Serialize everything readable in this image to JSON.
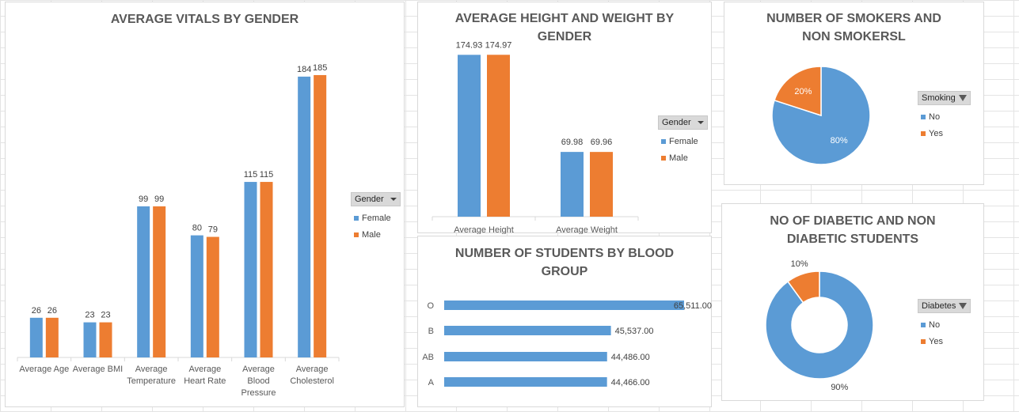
{
  "colors": {
    "female": "#5b9bd5",
    "male": "#ed7d31",
    "no": "#5b9bd5",
    "yes": "#ed7d31"
  },
  "chart_data": [
    {
      "id": "vitals",
      "type": "bar",
      "title": "AVERAGE VITALS BY GENDER",
      "categories": [
        "Average  Age",
        "Average  BMI",
        "Average Temperature",
        "Average Heart Rate",
        "Average Blood Pressure",
        "Average Cholesterol"
      ],
      "category_lines": [
        [
          "Average  Age"
        ],
        [
          "Average  BMI"
        ],
        [
          "Average",
          "Temperature"
        ],
        [
          "Average",
          "Heart Rate"
        ],
        [
          "Average",
          "Blood",
          "Pressure"
        ],
        [
          "Average",
          "Cholesterol"
        ]
      ],
      "series": [
        {
          "name": "Female",
          "values": [
            26,
            23,
            99,
            80,
            115,
            184
          ]
        },
        {
          "name": "Male",
          "values": [
            26,
            23,
            99,
            79,
            115,
            185
          ]
        }
      ],
      "ylim": [
        0,
        200
      ],
      "legend_title": "Gender",
      "legend": "right"
    },
    {
      "id": "heightweight",
      "type": "bar",
      "title": "AVERAGE HEIGHT AND WEIGHT BY GENDER",
      "title_lines": [
        "AVERAGE HEIGHT AND WEIGHT BY",
        "GENDER"
      ],
      "categories": [
        "Average  Height",
        "Average  Weight"
      ],
      "series": [
        {
          "name": "Female",
          "values": [
            174.93,
            69.98
          ]
        },
        {
          "name": "Male",
          "values": [
            174.97,
            69.96
          ]
        }
      ],
      "ylim": [
        0,
        200
      ],
      "legend_title": "Gender",
      "legend": "right"
    },
    {
      "id": "bloodgroup",
      "type": "bar",
      "orientation": "horizontal",
      "title": "NUMBER OF STUDENTS BY BLOOD GROUP",
      "title_lines": [
        "NUMBER OF STUDENTS BY BLOOD",
        "GROUP"
      ],
      "categories": [
        "O",
        "B",
        "AB",
        "A"
      ],
      "values": [
        65511,
        45537,
        44486,
        44466
      ],
      "labels": [
        "65,511.00",
        "45,537.00",
        "44,486.00",
        "44,466.00"
      ],
      "xlim": [
        0,
        70000
      ]
    },
    {
      "id": "smokers",
      "type": "pie",
      "title": "NUMBER OF SMOKERS AND NON SMOKERSL",
      "title_lines": [
        "NUMBER OF SMOKERS AND",
        "NON SMOKERSL"
      ],
      "categories": [
        "No",
        "Yes"
      ],
      "values": [
        80,
        20
      ],
      "labels": [
        "80%",
        "20%"
      ],
      "legend_title": "Smoking",
      "legend": "right"
    },
    {
      "id": "diabetes",
      "type": "pie",
      "donut": true,
      "title": "NO OF DIABETIC AND NON DIABETIC STUDENTS",
      "title_lines": [
        "NO OF DIABETIC AND NON",
        "DIABETIC STUDENTS"
      ],
      "categories": [
        "No",
        "Yes"
      ],
      "values": [
        90,
        10
      ],
      "labels": [
        "90%",
        "10%"
      ],
      "legend_title": "Diabetes",
      "legend": "right"
    }
  ]
}
